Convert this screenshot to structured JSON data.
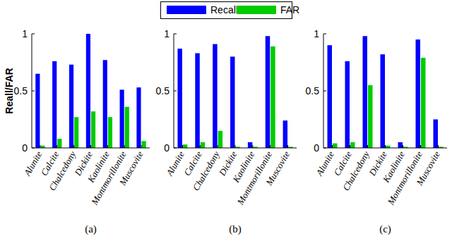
{
  "chart_data": [
    {
      "type": "bar",
      "x_label": "(a)",
      "y_label": "Reall/FAR",
      "legend": "top",
      "categories": [
        "Alunite",
        "Calcite",
        "Chalcedony",
        "Dickite",
        "Kaolinite",
        "Montmorillonite",
        "Muscovite"
      ],
      "series": [
        {
          "name": "Recall",
          "color": "#0000ff",
          "values": [
            0.65,
            0.76,
            0.73,
            1.0,
            0.77,
            0.51,
            0.53
          ]
        },
        {
          "name": "FAR",
          "color": "#00cc00",
          "values": [
            0.02,
            0.08,
            0.27,
            0.32,
            0.27,
            0.36,
            0.06
          ]
        }
      ],
      "ylim": [
        0,
        1
      ],
      "yticks": [
        0,
        0.5,
        1
      ]
    },
    {
      "type": "bar",
      "x_label": "(b)",
      "categories": [
        "Alunite",
        "Calcite",
        "Chalcedony",
        "Dickite",
        "Kaolinite",
        "Montmorillonite",
        "Muscovite"
      ],
      "series": [
        {
          "color": "#0000ff",
          "values": [
            0.87,
            0.83,
            0.91,
            0.8,
            0.05,
            0.98,
            0.24
          ]
        },
        {
          "color": "#00cc00",
          "values": [
            0.03,
            0.05,
            0.15,
            0.01,
            0.01,
            0.89,
            0.01
          ]
        }
      ],
      "ylim": [
        0,
        1
      ],
      "yticks": [
        0,
        0.5,
        1
      ]
    },
    {
      "type": "bar",
      "x_label": "(c)",
      "categories": [
        "Alunite",
        "Calcite",
        "Chalcedony",
        "Dickite",
        "Kaolinite",
        "Montmorillonite",
        "Muscovite"
      ],
      "series": [
        {
          "color": "#0000ff",
          "values": [
            0.9,
            0.76,
            0.98,
            0.82,
            0.05,
            0.95,
            0.25
          ]
        },
        {
          "color": "#00cc00",
          "values": [
            0.04,
            0.05,
            0.55,
            0.02,
            0.01,
            0.79,
            0.01
          ]
        }
      ],
      "ylim": [
        0,
        1
      ],
      "yticks": [
        0,
        0.5,
        1
      ]
    }
  ]
}
